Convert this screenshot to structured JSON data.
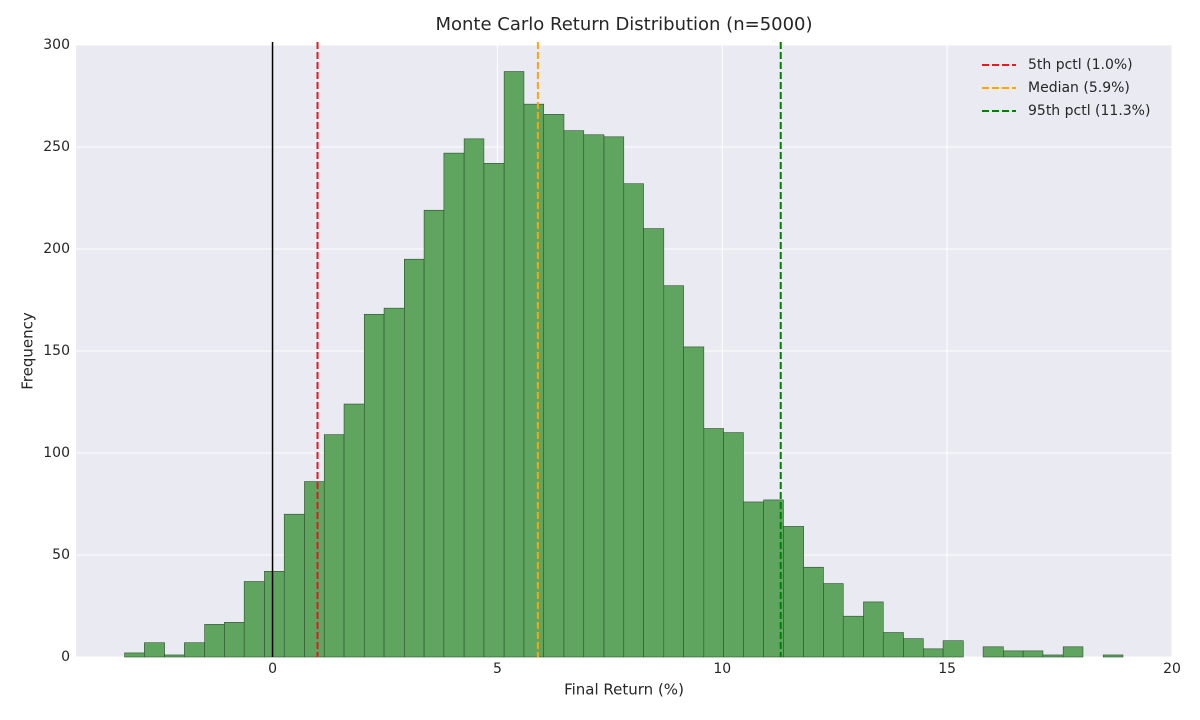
{
  "chart_data": {
    "type": "histogram",
    "title": "Monte Carlo Return Distribution (n=5000)",
    "xlabel": "Final Return (%)",
    "ylabel": "Frequency",
    "bins": [
      -3.29,
      -2.85,
      -2.4,
      -1.96,
      -1.51,
      -1.07,
      -0.63,
      -0.18,
      0.26,
      0.71,
      1.15,
      1.59,
      2.04,
      2.48,
      2.93,
      3.37,
      3.81,
      4.26,
      4.7,
      5.15,
      5.59,
      6.03,
      6.48,
      6.92,
      7.37,
      7.81,
      8.25,
      8.7,
      9.14,
      9.59,
      10.03,
      10.47,
      10.92,
      11.36,
      11.81,
      12.25,
      12.69,
      13.14,
      13.58,
      14.03,
      14.47,
      14.91,
      15.36,
      15.8,
      16.25,
      16.69,
      17.13,
      17.58,
      18.02,
      18.47,
      18.91
    ],
    "counts": [
      2,
      7,
      1,
      7,
      16,
      17,
      37,
      42,
      70,
      86,
      109,
      124,
      168,
      171,
      195,
      219,
      247,
      254,
      242,
      287,
      271,
      266,
      258,
      256,
      255,
      232,
      210,
      182,
      152,
      112,
      110,
      76,
      77,
      64,
      44,
      36,
      20,
      27,
      12,
      9,
      4,
      8,
      0,
      5,
      3,
      3,
      1,
      5,
      0,
      1
    ],
    "color": "#5fa55f",
    "edgecolor": "#2d4f2d",
    "vlines": [
      {
        "value": 0,
        "color": "#000000",
        "style": "solid"
      },
      {
        "value": 1.0,
        "color": "#e41a1c",
        "style": "dashed",
        "label": "5th pctl (1.0%)"
      },
      {
        "value": 5.9,
        "color": "#ffa500",
        "style": "dashed",
        "label": "Median (5.9%)"
      },
      {
        "value": 11.3,
        "color": "#008000",
        "style": "dashed",
        "label": "95th pctl (11.3%)"
      }
    ],
    "xlim": [
      -4.37,
      20
    ],
    "ylim": [
      0,
      300
    ],
    "xticks": [
      0,
      5,
      10,
      15,
      20
    ],
    "yticks": [
      0,
      50,
      100,
      150,
      200,
      250,
      300
    ],
    "grid": true,
    "legend": "upper right"
  }
}
